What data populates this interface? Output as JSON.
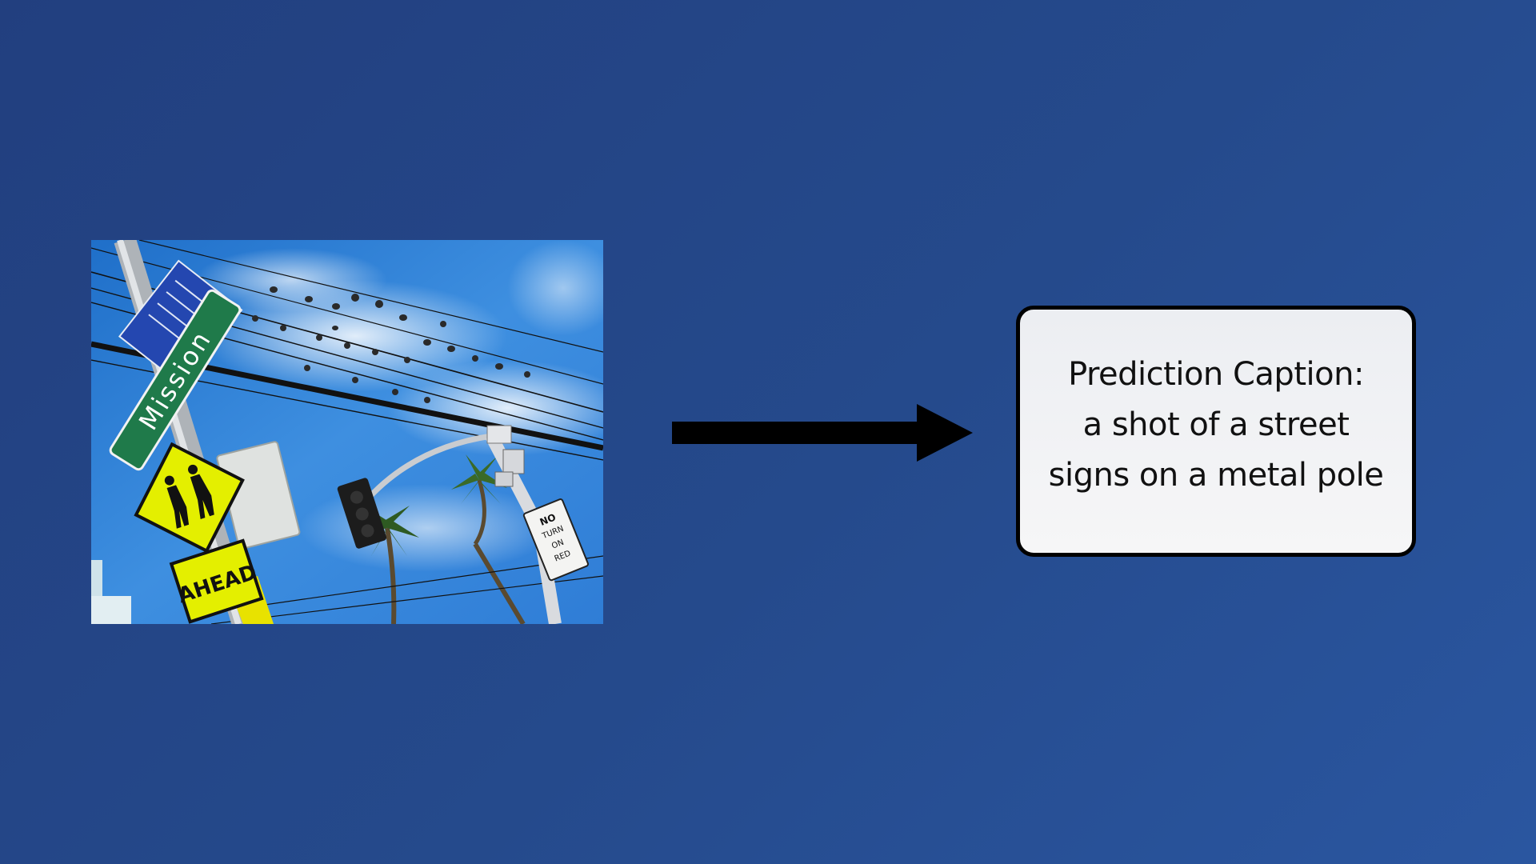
{
  "input_image": {
    "alt": "street signs on a pole",
    "street_sign_text": "Mission",
    "crossing_sign_text": "AHEAD",
    "turn_sign_lines": [
      "NO",
      "TURN",
      "ON",
      "RED"
    ]
  },
  "arrow": {
    "icon": "right-arrow-icon",
    "color": "#000000"
  },
  "caption": {
    "line1": "Prediction Caption:",
    "line2": "a shot of a street",
    "line3": "signs on a metal pole"
  },
  "colors": {
    "background": "#254a8c",
    "box_fill": "#f2f3f5",
    "box_border": "#000000"
  }
}
